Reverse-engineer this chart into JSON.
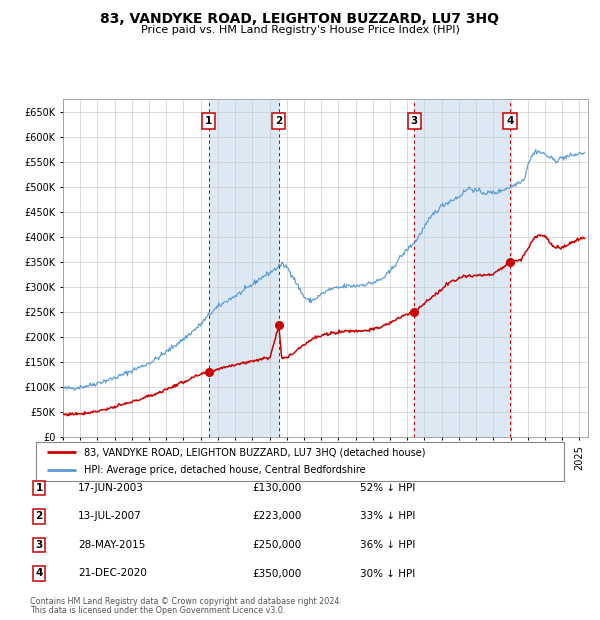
{
  "title": "83, VANDYKE ROAD, LEIGHTON BUZZARD, LU7 3HQ",
  "subtitle": "Price paid vs. HM Land Registry's House Price Index (HPI)",
  "legend_red": "83, VANDYKE ROAD, LEIGHTON BUZZARD, LU7 3HQ (detached house)",
  "legend_blue": "HPI: Average price, detached house, Central Bedfordshire",
  "footer1": "Contains HM Land Registry data © Crown copyright and database right 2024.",
  "footer2": "This data is licensed under the Open Government Licence v3.0.",
  "transactions": [
    {
      "num": 1,
      "date": "17-JUN-2003",
      "price": 130000,
      "pct": "52% ↓ HPI",
      "year": 2003.46
    },
    {
      "num": 2,
      "date": "13-JUL-2007",
      "price": 223000,
      "pct": "33% ↓ HPI",
      "year": 2007.54
    },
    {
      "num": 3,
      "date": "28-MAY-2015",
      "price": 250000,
      "pct": "36% ↓ HPI",
      "year": 2015.41
    },
    {
      "num": 4,
      "date": "21-DEC-2020",
      "price": 350000,
      "pct": "30% ↓ HPI",
      "year": 2020.97
    }
  ],
  "red_color": "#cc0000",
  "blue_color": "#5b9bd5",
  "fill_color": "#dce9f5",
  "grid_color": "#cccccc",
  "plot_bg": "#f0f4fa",
  "ylim": [
    0,
    675000
  ],
  "xlim_start": 1995.0,
  "xlim_end": 2025.5,
  "hpi_anchors_x": [
    1995,
    1995.5,
    1996,
    1996.5,
    1997,
    1997.5,
    1998,
    1998.5,
    1999,
    1999.5,
    2000,
    2000.5,
    2001,
    2001.5,
    2002,
    2002.5,
    2003,
    2003.5,
    2004,
    2004.5,
    2005,
    2005.5,
    2006,
    2006.5,
    2007.0,
    2007.3,
    2007.5,
    2007.7,
    2008.0,
    2008.3,
    2008.6,
    2009.0,
    2009.3,
    2009.6,
    2010,
    2010.5,
    2011,
    2011.5,
    2012,
    2012.5,
    2013,
    2013.5,
    2014,
    2014.5,
    2015,
    2015.5,
    2016,
    2016.5,
    2017,
    2017.5,
    2018,
    2018.3,
    2018.6,
    2019,
    2019.5,
    2020,
    2020.3,
    2020.6,
    2021,
    2021.3,
    2021.5,
    2021.8,
    2022,
    2022.3,
    2022.5,
    2023,
    2023.3,
    2023.6,
    2024,
    2024.5,
    2025.25
  ],
  "hpi_anchors_y": [
    97000,
    98000,
    100000,
    103000,
    108000,
    113000,
    118000,
    125000,
    133000,
    140000,
    148000,
    158000,
    170000,
    183000,
    196000,
    210000,
    225000,
    245000,
    260000,
    272000,
    282000,
    292000,
    305000,
    318000,
    328000,
    335000,
    340000,
    345000,
    340000,
    325000,
    305000,
    280000,
    272000,
    275000,
    285000,
    295000,
    298000,
    302000,
    302000,
    305000,
    308000,
    315000,
    330000,
    355000,
    375000,
    392000,
    420000,
    445000,
    462000,
    472000,
    480000,
    490000,
    498000,
    492000,
    488000,
    488000,
    490000,
    495000,
    500000,
    505000,
    510000,
    515000,
    545000,
    565000,
    572000,
    565000,
    558000,
    552000,
    558000,
    562000,
    568000
  ],
  "red_anchors_x": [
    1995,
    1995.5,
    1996,
    1996.5,
    1997,
    1997.5,
    1998,
    1998.5,
    1999,
    1999.5,
    2000,
    2000.5,
    2001,
    2001.5,
    2002,
    2002.5,
    2003,
    2003.46,
    2004,
    2004.5,
    2005,
    2005.5,
    2006,
    2006.5,
    2007.0,
    2007.54,
    2007.7,
    2008.0,
    2008.3,
    2008.6,
    2009.0,
    2009.3,
    2009.6,
    2010,
    2010.5,
    2011,
    2011.5,
    2012,
    2012.5,
    2013,
    2013.5,
    2014,
    2014.5,
    2015,
    2015.41,
    2016,
    2016.5,
    2017,
    2017.3,
    2017.6,
    2018,
    2018.5,
    2019,
    2019.5,
    2020,
    2020.97,
    2021.3,
    2021.6,
    2022,
    2022.3,
    2022.6,
    2023,
    2023.3,
    2023.6,
    2024,
    2024.5,
    2025.25
  ],
  "red_anchors_y": [
    45000,
    46000,
    47000,
    49000,
    52000,
    56000,
    60000,
    65000,
    70000,
    76000,
    82000,
    88000,
    95000,
    103000,
    110000,
    118000,
    125000,
    130000,
    136000,
    141000,
    145000,
    148000,
    152000,
    156000,
    158000,
    223000,
    160000,
    158000,
    165000,
    175000,
    185000,
    192000,
    198000,
    202000,
    207000,
    210000,
    212000,
    212000,
    213000,
    215000,
    220000,
    228000,
    238000,
    245000,
    250000,
    268000,
    280000,
    295000,
    305000,
    312000,
    318000,
    322000,
    323000,
    323000,
    325000,
    350000,
    352000,
    355000,
    375000,
    395000,
    403000,
    403000,
    388000,
    378000,
    378000,
    388000,
    398000
  ]
}
